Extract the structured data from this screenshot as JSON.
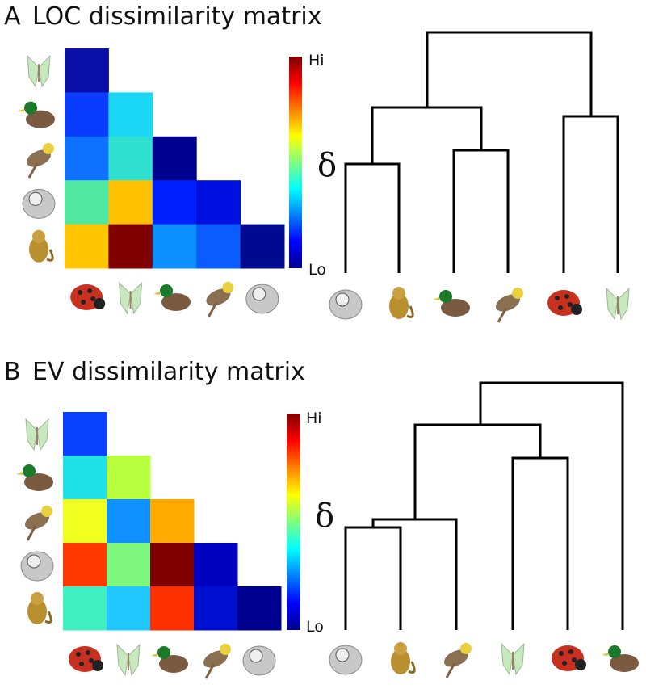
{
  "panels": [
    {
      "label": "A",
      "title": "LOC dissimilarity matrix",
      "colorbar": {
        "high": "Hi",
        "low": "Lo"
      },
      "symbol": "δ",
      "matrix_colors": [
        [
          "#0a0fa8"
        ],
        [
          "#0a3cff",
          "#1ad8f5"
        ],
        [
          "#0e70ff",
          "#30e0d0",
          "#00008f"
        ],
        [
          "#50e8a0",
          "#ffc000",
          "#0020ff",
          "#0010e0"
        ],
        [
          "#ffc400",
          "#800000",
          "#0c90ff",
          "#0a5cff",
          "#000a90"
        ]
      ]
    },
    {
      "label": "B",
      "title": "EV dissimilarity matrix",
      "colorbar": {
        "high": "Hi",
        "low": "Lo"
      },
      "symbol": "δ",
      "matrix_colors": [
        [
          "#0a40ff"
        ],
        [
          "#20e0e8",
          "#b8ff40"
        ],
        [
          "#f0ff20",
          "#1090ff",
          "#ffaa00"
        ],
        [
          "#ff3a00",
          "#80f880",
          "#800000",
          "#0000c0"
        ],
        [
          "#40f0c0",
          "#20c8ff",
          "#ff3000",
          "#0010d0",
          "#000090"
        ]
      ]
    }
  ]
}
